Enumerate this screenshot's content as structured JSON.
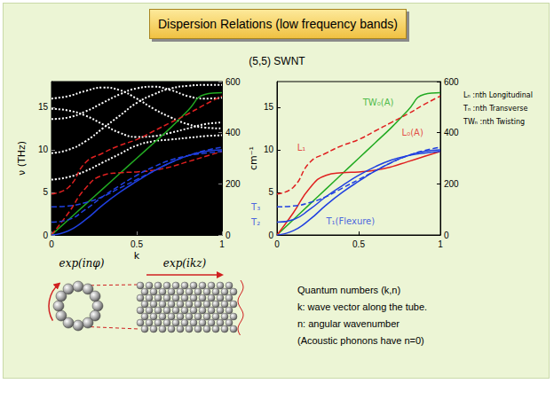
{
  "header": {
    "title": "Dispersion Relations (low frequency bands)",
    "subtitle": "(5,5) SWNT"
  },
  "chart_data": [
    {
      "type": "line",
      "x": [
        0,
        0.1,
        0.2,
        0.3,
        0.4,
        0.5,
        0.6,
        0.7,
        0.8,
        0.9,
        1
      ],
      "xlim": [
        0,
        1
      ],
      "xticks": [
        0,
        0.5,
        1
      ],
      "ylim": [
        0,
        18
      ],
      "yticks": [
        0,
        5,
        10,
        15
      ],
      "y2lim": [
        0,
        600
      ],
      "y2ticks": [
        0,
        200,
        400,
        600
      ],
      "x_label": "k",
      "y_label": "ν (THz)",
      "y2_label": "cm⁻¹",
      "series": [
        {
          "color": "#ffffff",
          "line_style": "dotted",
          "values": [
            9.6,
            10,
            11,
            12.5,
            14,
            15.5,
            16.5,
            17.2,
            17.5,
            17.6,
            17.6
          ]
        },
        {
          "color": "#ffffff",
          "line_style": "dotted",
          "values": [
            13.6,
            13.8,
            14.5,
            15.5,
            16.5,
            17.2,
            17.4,
            17,
            16.3,
            16,
            16.1
          ]
        },
        {
          "color": "#ffffff",
          "line_style": "dotted",
          "values": [
            16,
            16.3,
            16.9,
            17.3,
            17,
            16,
            14.8,
            13.8,
            13,
            12.6,
            12.5
          ]
        },
        {
          "color": "#ffffff",
          "line_style": "dotted",
          "values": [
            14.8,
            14.6,
            14,
            13,
            12,
            11.5,
            11.6,
            12,
            12.5,
            13,
            13.2
          ]
        },
        {
          "color": "#ffffff",
          "line_style": "dotted",
          "values": [
            6.5,
            6.8,
            7.5,
            8.5,
            9.5,
            10.5,
            11,
            11.2,
            11.4,
            11.6,
            11.7
          ]
        },
        {
          "color": "#22aa22",
          "line_style": "solid",
          "values": [
            0,
            1.8,
            3.6,
            5.4,
            7.2,
            9,
            10.8,
            12.6,
            14.6,
            16.5,
            16.7
          ]
        },
        {
          "color": "#e02020",
          "line_style": "dashed",
          "values": [
            4.8,
            5.6,
            8.5,
            9.6,
            10.5,
            11.2,
            12.2,
            13.2,
            14.2,
            15.3,
            16.3
          ]
        },
        {
          "color": "#e02020",
          "line_style": "dashed",
          "values": [
            0,
            2.6,
            5.5,
            7,
            7.3,
            7.4,
            7.6,
            8,
            8.6,
            9.2,
            9.8
          ]
        },
        {
          "color": "#2040e0",
          "line_style": "dashed",
          "values": [
            3.3,
            3.4,
            3.8,
            4.5,
            5.5,
            6.5,
            7.5,
            8.5,
            9.3,
            9.9,
            10.3
          ]
        },
        {
          "color": "#2040e0",
          "line_style": "dashed",
          "values": [
            1.5,
            1.8,
            3,
            4.5,
            5.8,
            7,
            8,
            8.8,
            9.3,
            9.6,
            9.8
          ]
        },
        {
          "color": "#2040e0",
          "line_style": "solid",
          "values": [
            0,
            0.5,
            1.8,
            3.5,
            5,
            6.3,
            7.5,
            8.5,
            9.3,
            9.8,
            10
          ]
        }
      ]
    },
    {
      "type": "line",
      "x": [
        0,
        0.1,
        0.2,
        0.3,
        0.4,
        0.5,
        0.6,
        0.7,
        0.8,
        0.9,
        1
      ],
      "xlim": [
        0,
        1
      ],
      "xticks": [
        0,
        0.5,
        1
      ],
      "ylim": [
        0,
        18
      ],
      "yticks": [
        0,
        5,
        10,
        15
      ],
      "y2lim": [
        0,
        600
      ],
      "y2ticks": [
        0,
        200,
        400,
        600
      ],
      "series": [
        {
          "name": "TW₀(A)",
          "color": "#22aa22",
          "line_style": "solid",
          "values": [
            0,
            1.8,
            3.6,
            5.4,
            7.2,
            9,
            10.8,
            12.6,
            14.6,
            16.5,
            16.7
          ],
          "label_at": [
            0.62,
            15.6
          ]
        },
        {
          "name": "L₁",
          "color": "#e02020",
          "line_style": "dashed",
          "values": [
            4.8,
            5.6,
            8.5,
            9.6,
            10.5,
            11.2,
            12.2,
            13.2,
            14.2,
            15.3,
            16.3
          ],
          "label_at": [
            0.15,
            10.2
          ]
        },
        {
          "name": "L₀(A)",
          "color": "#e02020",
          "line_style": "solid",
          "values": [
            0,
            2.6,
            5.5,
            7,
            7.3,
            7.4,
            7.6,
            8,
            8.6,
            9.2,
            9.8
          ],
          "label_at": [
            0.83,
            12
          ]
        },
        {
          "name": "T₃",
          "color": "#2040e0",
          "line_style": "dashed",
          "values": [
            3.3,
            3.4,
            3.8,
            4.5,
            5.5,
            6.5,
            7.5,
            8.5,
            9.3,
            9.9,
            10.3
          ],
          "label_at": [
            -0.13,
            3.3
          ]
        },
        {
          "name": "T₂",
          "color": "#2040e0",
          "line_style": "solid",
          "values": [
            1.5,
            1.8,
            3,
            4.5,
            5.8,
            7,
            8,
            8.8,
            9.3,
            9.6,
            9.8
          ],
          "label_at": [
            -0.13,
            1.5
          ]
        },
        {
          "name": "T₁(Flexure)",
          "color": "#2040e0",
          "line_style": "solid",
          "values": [
            0,
            0.5,
            1.8,
            3.5,
            5,
            6.3,
            7.5,
            8.5,
            9.3,
            9.8,
            10
          ],
          "label_at": [
            0.45,
            1.6
          ]
        }
      ]
    }
  ],
  "legend_notes": [
    "Lₙ :nth Longitudinal",
    "Tₙ :nth Transverse",
    "TWₙ :nth Twisting"
  ],
  "diagram": {
    "angular_label": "exp(inφ)",
    "axial_label": "exp(ikz)"
  },
  "notes": [
    "Quantum numbers (k,n)",
    "k: wave vector along the tube.",
    "n: angular wavenumber",
    "(Acoustic phonons have n=0)"
  ]
}
